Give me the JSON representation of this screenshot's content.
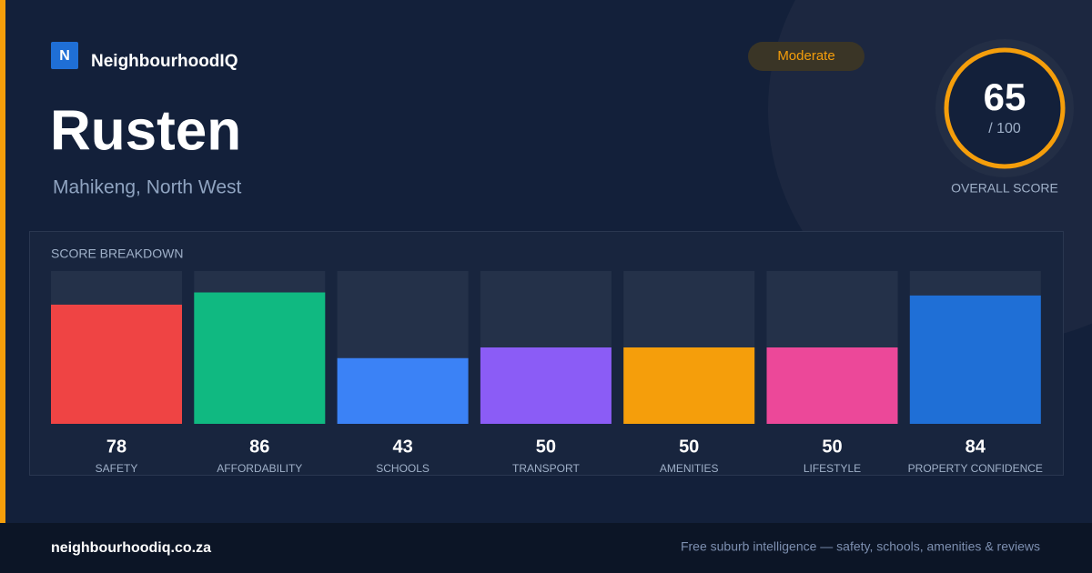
{
  "brand": {
    "logo": "N",
    "name": "NeighbourhoodIQ"
  },
  "title": "Rusten",
  "subtitle": "Mahikeng, North West",
  "badge": "Moderate",
  "overall": {
    "score": 65,
    "out_of": "/ 100",
    "label": "OVERALL SCORE"
  },
  "chart_data": {
    "type": "bar",
    "title": "SCORE BREAKDOWN",
    "categories": [
      "SAFETY",
      "AFFORDABILITY",
      "SCHOOLS",
      "TRANSPORT",
      "AMENITIES",
      "LIFESTYLE",
      "PROPERTY CONFIDENCE"
    ],
    "values": [
      78,
      86,
      43,
      50,
      50,
      50,
      84
    ],
    "colors": [
      "#ef4444",
      "#10b981",
      "#3b82f6",
      "#8b5cf6",
      "#f59e0b",
      "#ec4899",
      "#1f6fd6"
    ],
    "ylim": [
      0,
      100
    ]
  },
  "footer": {
    "site": "neighbourhoodiq.co.za",
    "tagline": "Free suburb intelligence — safety, schools, amenities & reviews"
  }
}
